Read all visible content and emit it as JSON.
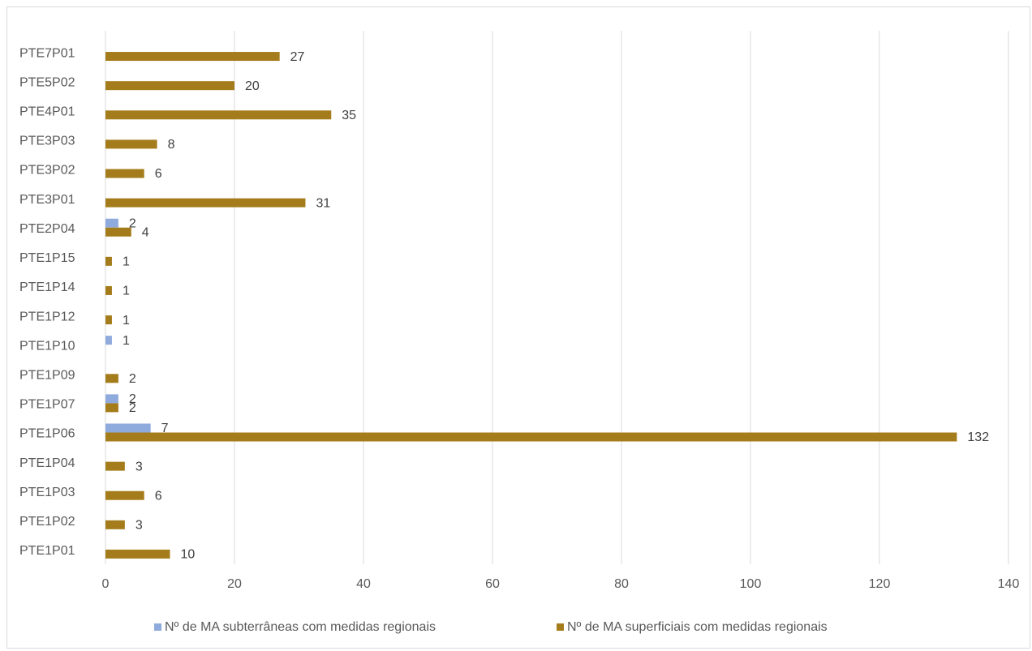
{
  "chart_data": {
    "type": "bar",
    "orientation": "horizontal",
    "categories": [
      "PTE1P01",
      "PTE1P02",
      "PTE1P03",
      "PTE1P04",
      "PTE1P06",
      "PTE1P07",
      "PTE1P09",
      "PTE1P10",
      "PTE1P12",
      "PTE1P14",
      "PTE1P15",
      "PTE2P04",
      "PTE3P01",
      "PTE3P02",
      "PTE3P03",
      "PTE4P01",
      "PTE5P02",
      "PTE7P01"
    ],
    "series": [
      {
        "name": "Nº de MA subterrâneas com medidas regionais",
        "color": "#8faadc",
        "values": [
          null,
          null,
          null,
          null,
          7,
          2,
          null,
          1,
          null,
          null,
          null,
          2,
          null,
          null,
          null,
          null,
          null,
          null
        ]
      },
      {
        "name": "Nº de MA superficiais com medidas regionais",
        "color": "#a57c1b",
        "values": [
          10,
          3,
          6,
          3,
          132,
          2,
          2,
          null,
          1,
          1,
          1,
          4,
          31,
          6,
          8,
          35,
          20,
          27
        ]
      }
    ],
    "xlim": [
      0,
      140
    ],
    "xticks": [
      "0",
      "20",
      "40",
      "60",
      "80",
      "100",
      "120",
      "140"
    ],
    "grid": true,
    "legend_position": "bottom",
    "title": "",
    "xlabel": "",
    "ylabel": ""
  }
}
